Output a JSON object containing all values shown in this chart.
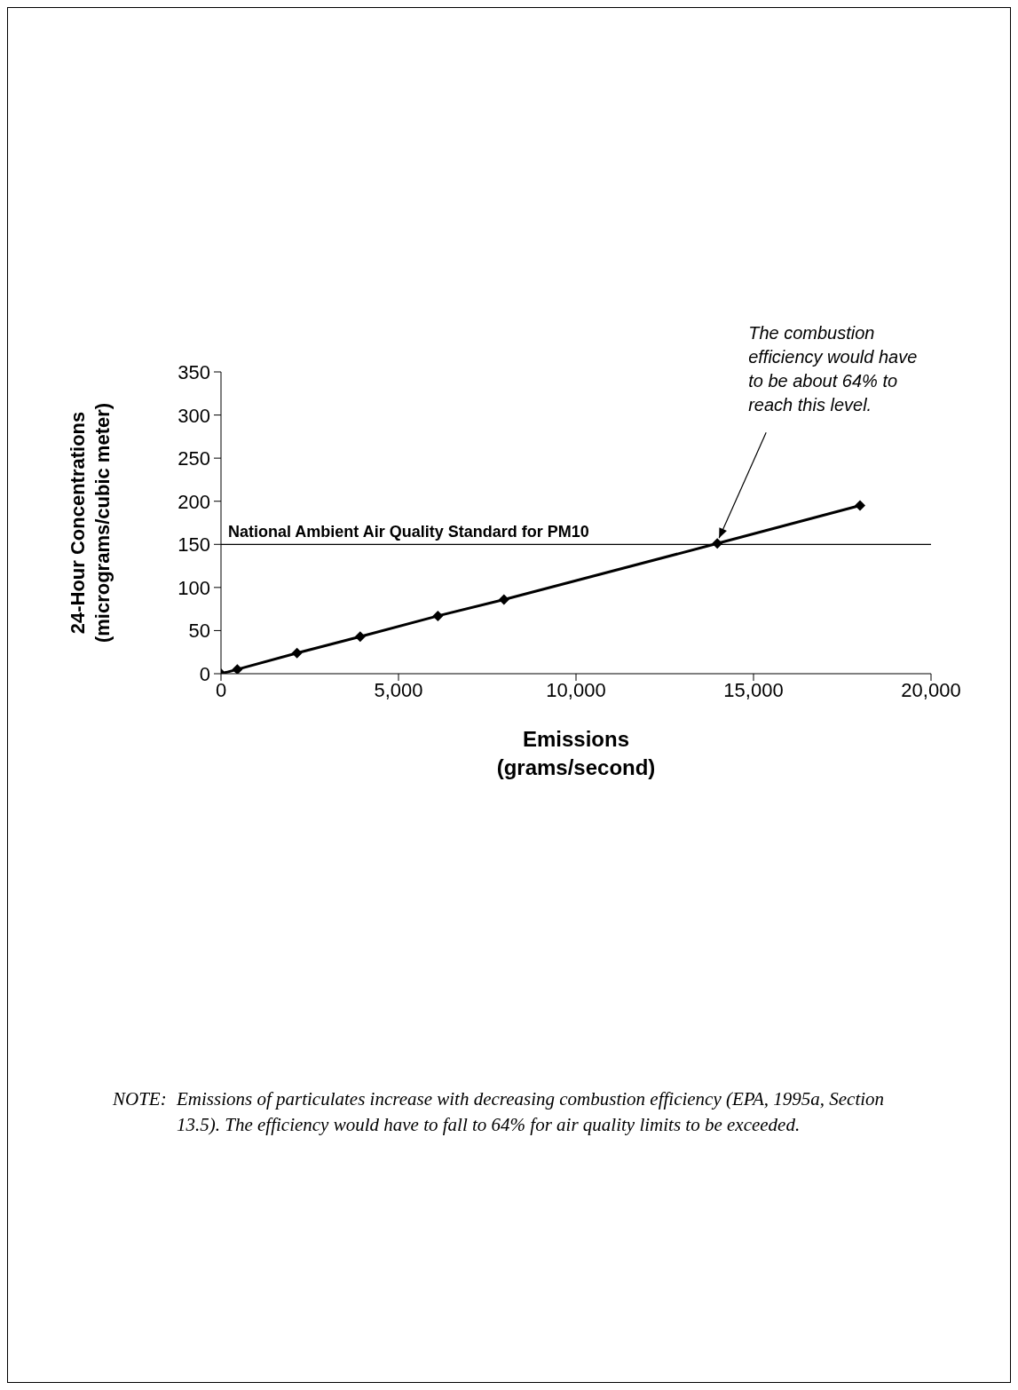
{
  "chart_data": {
    "type": "line",
    "xlabel": "Emissions\n(grams/second)",
    "ylabel": "24-Hour Concentrations\n(micrograms/cubic meter)",
    "x": [
      0,
      460,
      2140,
      3920,
      6110,
      7970,
      13980,
      18000
    ],
    "series": [
      {
        "color": "#000000",
        "values": [
          0,
          5,
          24,
          43,
          67,
          86,
          151,
          195
        ]
      }
    ],
    "xlim": [
      0,
      20000
    ],
    "xticks": [
      {
        "value": 0,
        "label": "0"
      },
      {
        "value": 5000,
        "label": "5,000"
      },
      {
        "value": 10000,
        "label": "10,000"
      },
      {
        "value": 15000,
        "label": "15,000"
      },
      {
        "value": 20000,
        "label": "20,000"
      }
    ],
    "ylim": [
      0,
      350
    ],
    "yticks": [
      0,
      50,
      100,
      150,
      200,
      250,
      300,
      350
    ],
    "grid": false,
    "legend": false,
    "marker": "diamond",
    "line_style": "solid",
    "ref_lines": [
      {
        "axis": "y",
        "value": 150,
        "label": "National Ambient Air Quality Standard for PM10",
        "color": "#000000"
      }
    ],
    "annotations": [
      {
        "text": "The combustion\nefficiency would have\nto be about 64% to\nreach this level.",
        "x": 13980,
        "y": 151
      },
      "NOTE:\tEmissions of particulates increase with decreasing combustion efficiency (EPA, 1995a, Section 13.5). The efficiency would have to fall to 64% for air quality limits to be exceeded."
    ]
  }
}
